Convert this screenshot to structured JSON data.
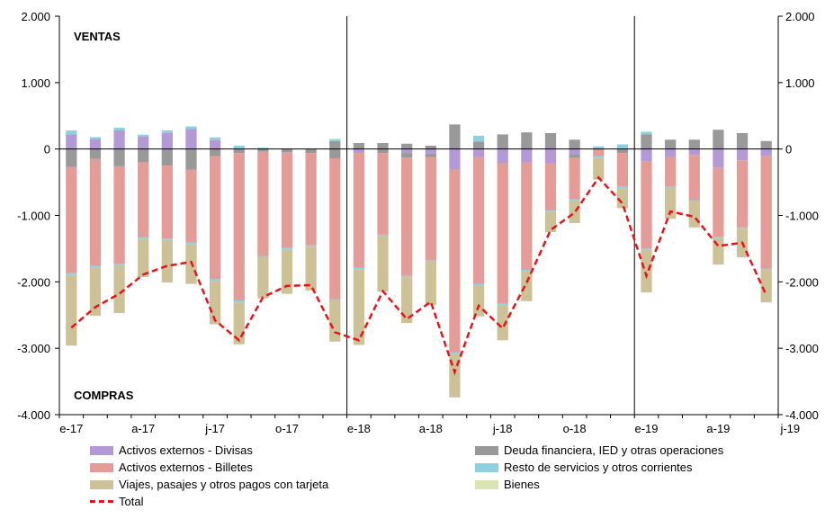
{
  "chart_data": {
    "type": "bar",
    "stacked": true,
    "title": "",
    "xlabel": "",
    "ylabel": "",
    "ylim": [
      -4000,
      2000
    ],
    "yticks": [
      "2.000",
      "1.000",
      "0",
      "-1.000",
      "-2.000",
      "-3.000",
      "-4.000"
    ],
    "x_tick_labels": [
      "e-17",
      "a-17",
      "j-17",
      "o-17",
      "e-18",
      "a-18",
      "j-18",
      "o-18",
      "e-19",
      "a-19",
      "j-19"
    ],
    "annotations": {
      "top": "VENTAS",
      "bottom": "COMPRAS"
    },
    "grid": false,
    "legend_position": "bottom",
    "categories": [
      "ene-17",
      "feb-17",
      "mar-17",
      "abr-17",
      "may-17",
      "jun-17",
      "jul-17",
      "ago-17",
      "sep-17",
      "oct-17",
      "nov-17",
      "dic-17",
      "ene-18",
      "feb-18",
      "mar-18",
      "abr-18",
      "may-18",
      "jun-18",
      "jul-18",
      "ago-18",
      "sep-18",
      "oct-18",
      "nov-18",
      "dic-18",
      "ene-19",
      "feb-19",
      "mar-19",
      "abr-19",
      "may-19",
      "jun-19"
    ],
    "series": [
      {
        "name": "Activos externos - Divisas",
        "color": "#b39ad6",
        "pos": [
          220,
          150,
          280,
          185,
          240,
          300,
          135,
          0,
          0,
          0,
          0,
          0,
          0,
          0,
          0,
          0,
          0,
          0,
          0,
          0,
          0,
          0,
          0,
          0,
          0,
          0,
          0,
          0,
          0,
          0
        ],
        "neg": [
          0,
          0,
          0,
          0,
          0,
          0,
          0,
          0,
          0,
          0,
          0,
          0,
          -60,
          0,
          -60,
          -70,
          -310,
          -120,
          -220,
          -200,
          -220,
          -85,
          0,
          0,
          -190,
          -120,
          -90,
          -280,
          -170,
          -110
        ]
      },
      {
        "name": "Deuda financiera, IED y otras operaciones",
        "color": "#999999",
        "pos": [
          0,
          0,
          0,
          0,
          0,
          0,
          0,
          0,
          0,
          0,
          0,
          120,
          90,
          90,
          80,
          50,
          370,
          110,
          220,
          250,
          240,
          140,
          10,
          0,
          220,
          140,
          140,
          290,
          240,
          120
        ],
        "neg": [
          -270,
          -150,
          -260,
          -200,
          -250,
          -310,
          -110,
          -60,
          -40,
          -50,
          -60,
          -140,
          0,
          -60,
          -70,
          -50,
          0,
          0,
          0,
          0,
          0,
          -50,
          0,
          -60,
          0,
          0,
          0,
          0,
          0,
          0
        ]
      },
      {
        "name": "Activos externos - Billetes",
        "color": "#e39c98",
        "pos": [
          0,
          0,
          0,
          0,
          0,
          0,
          0,
          0,
          0,
          0,
          0,
          0,
          0,
          0,
          0,
          0,
          0,
          0,
          0,
          0,
          0,
          0,
          0,
          0,
          0,
          0,
          0,
          0,
          0,
          0
        ],
        "neg": [
          -1590,
          -1610,
          -1470,
          -1130,
          -1100,
          -1100,
          -1850,
          -2220,
          -1570,
          -1440,
          -1390,
          -2120,
          -1730,
          -1230,
          -1780,
          -1550,
          -2750,
          -1910,
          -2110,
          -1620,
          -710,
          -620,
          -110,
          -510,
          -1310,
          -440,
          -680,
          -1040,
          -1010,
          -1690
        ]
      },
      {
        "name": "Resto de servicios y otros corrientes",
        "color": "#8ecfe0",
        "pos": [
          60,
          30,
          40,
          30,
          40,
          40,
          40,
          50,
          20,
          0,
          0,
          30,
          0,
          0,
          0,
          0,
          0,
          90,
          0,
          0,
          0,
          0,
          30,
          70,
          40,
          0,
          0,
          0,
          0,
          0
        ],
        "neg": [
          -30,
          -20,
          -20,
          -20,
          -20,
          -20,
          -30,
          -30,
          -20,
          -20,
          -20,
          -20,
          -20,
          -20,
          -20,
          -20,
          -20,
          -20,
          -20,
          -20,
          -20,
          -20,
          -20,
          -20,
          -20,
          -20,
          -20,
          -20,
          -20,
          -20
        ]
      },
      {
        "name": "Viajes, pasajes y otros pagos con tarjeta",
        "color": "#cdc197",
        "pos": [
          0,
          0,
          0,
          0,
          0,
          0,
          0,
          0,
          0,
          0,
          0,
          0,
          0,
          0,
          0,
          0,
          0,
          0,
          0,
          0,
          0,
          0,
          0,
          0,
          0,
          0,
          0,
          0,
          0,
          0
        ],
        "neg": [
          -1070,
          -730,
          -720,
          -580,
          -640,
          -600,
          -650,
          -630,
          -620,
          -670,
          -660,
          -620,
          -1140,
          -840,
          -690,
          -660,
          -660,
          -470,
          -530,
          -450,
          -300,
          -340,
          -330,
          -300,
          -640,
          -470,
          -390,
          -400,
          -430,
          -490
        ]
      },
      {
        "name": "Bienes",
        "color": "#d9e5b3",
        "pos": [
          0,
          0,
          0,
          0,
          0,
          0,
          0,
          0,
          0,
          0,
          0,
          0,
          0,
          0,
          0,
          0,
          0,
          0,
          0,
          0,
          0,
          0,
          0,
          0,
          0,
          0,
          0,
          0,
          0,
          0
        ],
        "neg": [
          0,
          0,
          0,
          0,
          0,
          0,
          0,
          0,
          0,
          0,
          0,
          0,
          0,
          0,
          0,
          0,
          0,
          0,
          0,
          0,
          0,
          0,
          0,
          0,
          0,
          0,
          0,
          0,
          0,
          0
        ]
      },
      {
        "name": "Total",
        "color": "#e8141c",
        "line": true,
        "values": [
          -2690,
          -2380,
          -2180,
          -1890,
          -1760,
          -1700,
          -2580,
          -2880,
          -2230,
          -2060,
          -2050,
          -2760,
          -2880,
          -2140,
          -2560,
          -2300,
          -3360,
          -2360,
          -2700,
          -2010,
          -1220,
          -960,
          -430,
          -820,
          -1910,
          -940,
          -1020,
          -1460,
          -1410,
          -2200
        ]
      }
    ]
  }
}
